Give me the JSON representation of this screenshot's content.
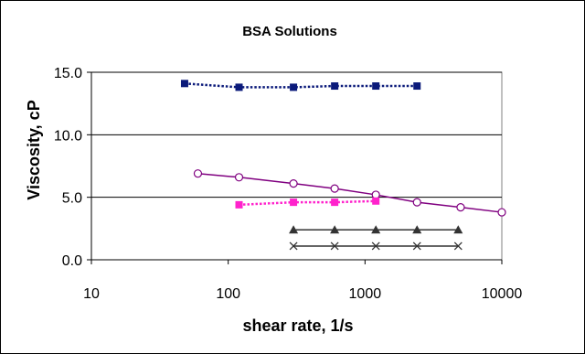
{
  "chart_data": {
    "type": "scatter",
    "title": "BSA Solutions",
    "xlabel": "shear rate, 1/s",
    "ylabel": "Viscosity, cP",
    "x_scale": "log",
    "xlim": [
      10,
      10000
    ],
    "ylim": [
      0,
      15
    ],
    "x_ticks": [
      10,
      100,
      1000,
      10000
    ],
    "x_tick_labels": [
      "10",
      "100",
      "1000",
      "10000"
    ],
    "y_ticks": [
      0,
      5,
      10,
      15
    ],
    "y_tick_labels": [
      "0.0",
      "5.0",
      "10.0",
      "15.0"
    ],
    "grid": "horizontal",
    "legend": "none",
    "series": [
      {
        "color": "#0b1a7a",
        "marker": "square",
        "line": "dotted",
        "x": [
          48,
          120,
          300,
          600,
          1200,
          2400
        ],
        "y": [
          14.1,
          13.8,
          13.8,
          13.9,
          13.9,
          13.9
        ]
      },
      {
        "color": "#800080",
        "marker": "circle-open",
        "line": "solid",
        "x": [
          60,
          120,
          300,
          600,
          1200,
          2400,
          5000,
          10000
        ],
        "y": [
          6.9,
          6.6,
          6.1,
          5.7,
          5.2,
          4.6,
          4.2,
          3.8
        ]
      },
      {
        "color": "#ff22cc",
        "marker": "square",
        "line": "dotted",
        "x": [
          120,
          300,
          600,
          1200
        ],
        "y": [
          4.4,
          4.6,
          4.6,
          4.7
        ]
      },
      {
        "color": "#333333",
        "marker": "triangle",
        "line": "solid",
        "x": [
          300,
          600,
          1200,
          2400,
          4800
        ],
        "y": [
          2.4,
          2.4,
          2.4,
          2.4,
          2.4
        ]
      },
      {
        "color": "#333333",
        "marker": "x",
        "line": "solid",
        "x": [
          300,
          600,
          1200,
          2400,
          4800
        ],
        "y": [
          1.1,
          1.1,
          1.1,
          1.1,
          1.1
        ]
      }
    ]
  }
}
